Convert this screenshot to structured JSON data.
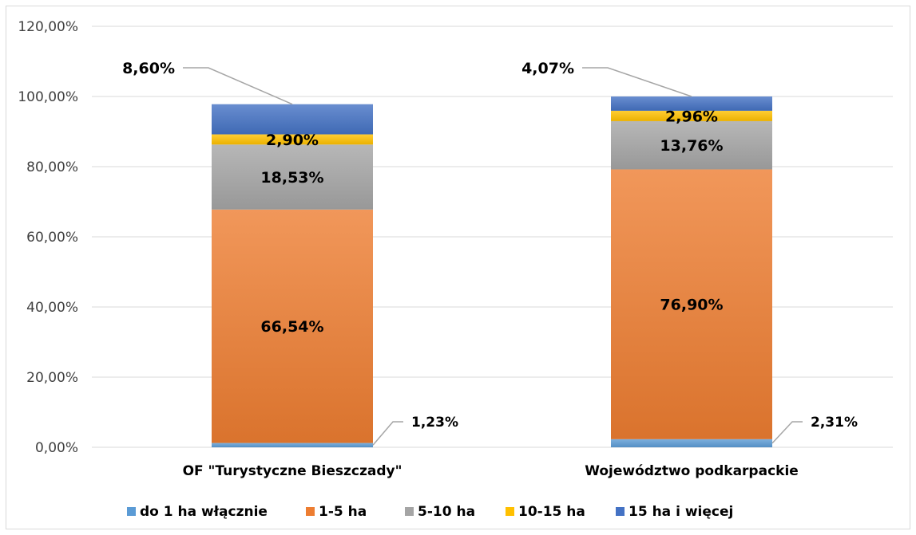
{
  "chart_data": {
    "type": "bar",
    "stacked": true,
    "categories": [
      "OF \"Turystyczne Bieszczady\"",
      "Województwo podkarpackie"
    ],
    "series": [
      {
        "name": "do 1 ha włącznie",
        "values": [
          1.23,
          2.31
        ],
        "labels": [
          "1,23%",
          "2,31%"
        ],
        "color": "#5b9bd5"
      },
      {
        "name": "1-5 ha",
        "values": [
          66.54,
          76.9
        ],
        "labels": [
          "66,54%",
          "76,90%"
        ],
        "color": "#ed7d31"
      },
      {
        "name": "5-10 ha",
        "values": [
          18.53,
          13.76
        ],
        "labels": [
          "18,53%",
          "13,76%"
        ],
        "color": "#a5a5a5"
      },
      {
        "name": "10-15 ha",
        "values": [
          2.9,
          2.96
        ],
        "labels": [
          "2,90%",
          "2,96%"
        ],
        "color": "#ffc000"
      },
      {
        "name": "15 ha i więcej",
        "values": [
          8.6,
          4.07
        ],
        "labels": [
          "8,60%",
          "4,07%"
        ],
        "color": "#4472c4"
      }
    ],
    "ylim": [
      0,
      120
    ],
    "yticks": [
      0,
      20,
      40,
      60,
      80,
      100,
      120
    ],
    "ytick_labels": [
      "0,00%",
      "20,00%",
      "40,00%",
      "60,00%",
      "80,00%",
      "100,00%",
      "120,00%"
    ],
    "title": "",
    "xlabel": "",
    "ylabel": "",
    "grid": true,
    "legend_position": "bottom"
  }
}
